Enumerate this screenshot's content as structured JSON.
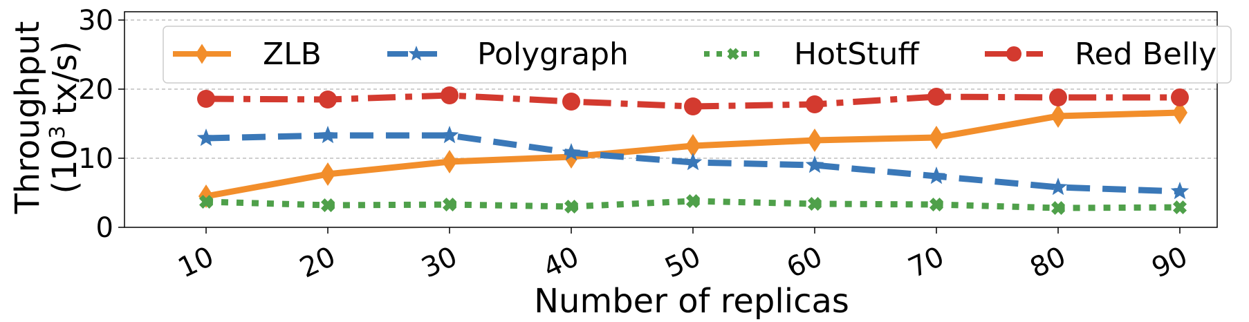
{
  "chart_data": {
    "type": "line",
    "x": [
      10,
      20,
      30,
      40,
      50,
      60,
      70,
      80,
      90
    ],
    "xlabel": "Number of replicas",
    "ylabel_line1": "Throughput",
    "ylabel_line2_prefix": "(10",
    "ylabel_line2_exp": "3",
    "ylabel_line2_suffix": " tx/s)",
    "ylim": [
      0,
      30
    ],
    "yticks": [
      0,
      10,
      20,
      30
    ],
    "grid": "horizontal dashed",
    "legend_position": "top",
    "series": [
      {
        "name": "ZLB",
        "color": "#f28e2b",
        "marker": "diamond",
        "linestyle": "solid",
        "values": [
          4.5,
          7.7,
          9.5,
          10.2,
          11.8,
          12.6,
          13.0,
          16.1,
          16.6
        ]
      },
      {
        "name": "Polygraph",
        "color": "#3a78b8",
        "marker": "star",
        "linestyle": "dashed",
        "values": [
          12.9,
          13.3,
          13.3,
          10.8,
          9.4,
          9.0,
          7.4,
          5.8,
          5.2
        ]
      },
      {
        "name": "HotStuff",
        "color": "#4fa04a",
        "marker": "x",
        "linestyle": "dotted",
        "values": [
          3.7,
          3.2,
          3.3,
          3.0,
          3.8,
          3.4,
          3.3,
          2.8,
          2.9
        ]
      },
      {
        "name": "Red Belly",
        "color": "#d33a2f",
        "marker": "circle",
        "linestyle": "dashdot",
        "values": [
          18.6,
          18.5,
          19.1,
          18.2,
          17.5,
          17.8,
          18.9,
          18.8,
          18.8
        ]
      }
    ]
  }
}
